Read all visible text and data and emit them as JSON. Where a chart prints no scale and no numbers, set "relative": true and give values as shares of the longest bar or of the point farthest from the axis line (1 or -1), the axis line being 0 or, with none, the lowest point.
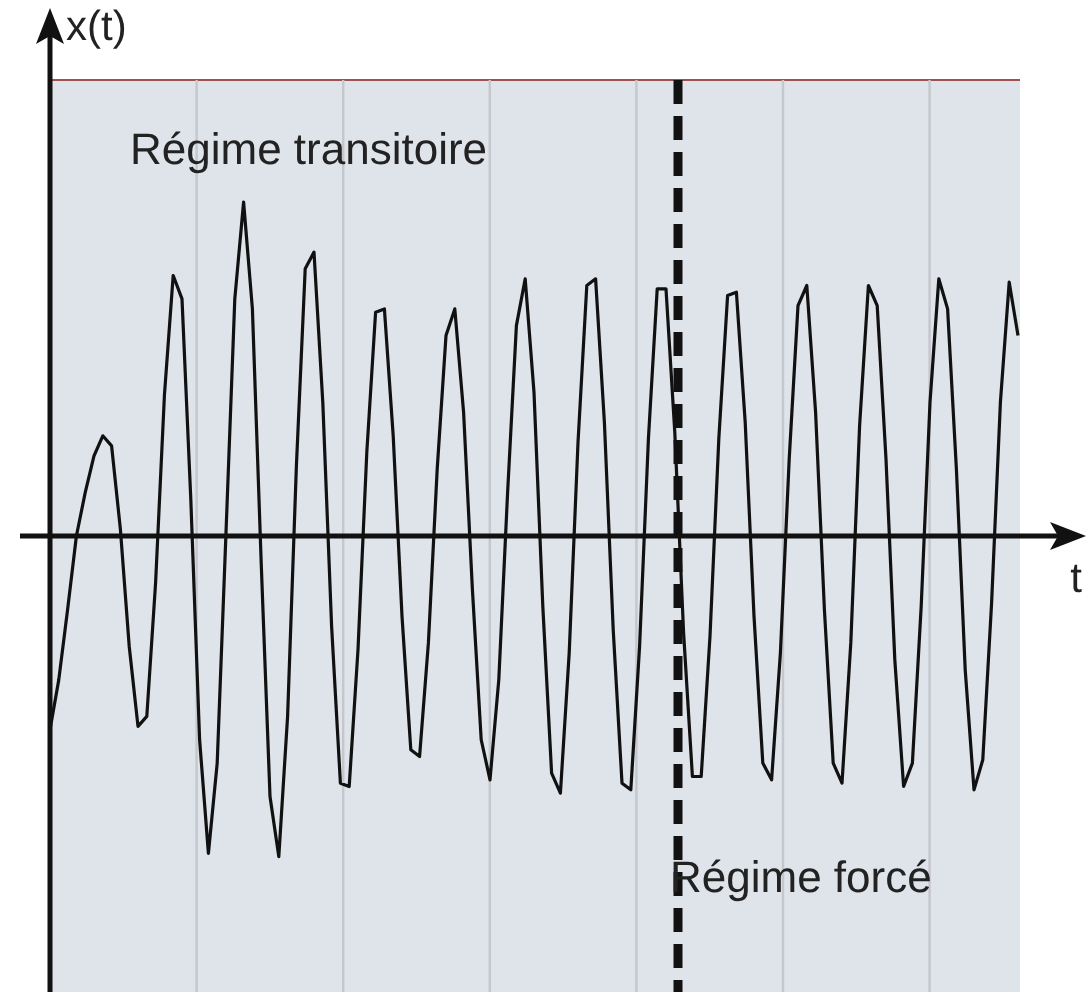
{
  "chart_data": {
    "type": "line",
    "xlabel": "t",
    "ylabel": "x(t)",
    "relative": true,
    "annotations": [
      "Régime transitoire",
      "Régime forcé"
    ],
    "categories": [
      null,
      null,
      null,
      null,
      null,
      null,
      null,
      null,
      null,
      null,
      null,
      null,
      null,
      null,
      null,
      null,
      null,
      null,
      null,
      null,
      null,
      null,
      null,
      null,
      null,
      null,
      null,
      null,
      null,
      null,
      null,
      null,
      null,
      null,
      null,
      null,
      null,
      null,
      null,
      null,
      null,
      null,
      null,
      null,
      null,
      null,
      null,
      null,
      null,
      null,
      null,
      null,
      null,
      null,
      null,
      null,
      null,
      null,
      null,
      null,
      null,
      null,
      null,
      null,
      null,
      null,
      null,
      null,
      null,
      null,
      null,
      null,
      null,
      null,
      null,
      null,
      null,
      null,
      null,
      null,
      null,
      null,
      null,
      null,
      null,
      null,
      null,
      null,
      null,
      null,
      null,
      null,
      null,
      null,
      null,
      null,
      null,
      null,
      null,
      null,
      null,
      null,
      null,
      null,
      null,
      null,
      null,
      null,
      null,
      null,
      null
    ],
    "grid": "x",
    "marker": "none",
    "line_style": "solid",
    "series": [
      {
        "color": "#111111",
        "values": [
          -0.58,
          -0.43,
          -0.22,
          0,
          0.13,
          0.24,
          0.3,
          0.27,
          0.02,
          -0.33,
          -0.57,
          -0.54,
          -0.14,
          0.42,
          0.78,
          0.71,
          0.11,
          -0.61,
          -0.95,
          -0.68,
          0.01,
          0.71,
          1,
          0.68,
          -0.08,
          -0.78,
          -0.96,
          -0.54,
          0.21,
          0.8,
          0.85,
          0.4,
          -0.27,
          -0.74,
          -0.75,
          -0.34,
          0.25,
          0.67,
          0.68,
          0.3,
          -0.24,
          -0.64,
          -0.66,
          -0.32,
          0.2,
          0.6,
          0.68,
          0.37,
          -0.16,
          -0.61,
          -0.73,
          -0.43,
          0.13,
          0.63,
          0.77,
          0.43,
          -0.21,
          -0.71,
          -0.77,
          -0.35,
          0.28,
          0.75,
          0.77,
          0.34,
          -0.28,
          -0.74,
          -0.76,
          -0.33,
          0.29,
          0.74,
          0.74,
          0.31,
          -0.29,
          -0.72,
          -0.72,
          -0.3,
          0.29,
          0.72,
          0.73,
          0.34,
          -0.24,
          -0.68,
          -0.73,
          -0.35,
          0.23,
          0.69,
          0.75,
          0.37,
          -0.22,
          -0.68,
          -0.74,
          -0.32,
          0.33,
          0.75,
          0.69,
          0.23,
          -0.37,
          -0.75,
          -0.68,
          -0.21,
          0.4,
          0.77,
          0.68,
          0.2,
          -0.4,
          -0.76,
          -0.67,
          -0.2,
          0.4,
          0.76,
          0.6
        ]
      }
    ]
  }
}
